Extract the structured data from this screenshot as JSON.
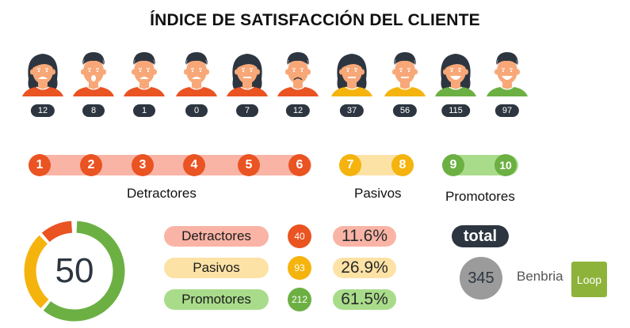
{
  "title": "ÍNDICE DE SATISFACCIÓN DEL CLIENTE",
  "colors": {
    "detractor": "#ea5322",
    "detractor_light": "#f9b4a6",
    "passive": "#f5b30e",
    "passive_light": "#fde2a5",
    "promoter": "#6cb043",
    "promoter_light": "#a9dc8a",
    "dark": "#2d3640",
    "skin": "#f8a878"
  },
  "faces": [
    {
      "score": 1,
      "count": "12",
      "gender": "female",
      "expression": "angry",
      "shirt": "#ea5322"
    },
    {
      "score": 2,
      "count": "8",
      "gender": "male",
      "expression": "shocked",
      "shirt": "#ea5322"
    },
    {
      "score": 3,
      "count": "1",
      "gender": "male",
      "expression": "upset",
      "shirt": "#ea5322"
    },
    {
      "score": 4,
      "count": "0",
      "gender": "male",
      "expression": "annoyed",
      "shirt": "#ea5322"
    },
    {
      "score": 5,
      "count": "7",
      "gender": "female",
      "expression": "worried",
      "shirt": "#ea5322"
    },
    {
      "score": 6,
      "count": "12",
      "gender": "male",
      "expression": "sad",
      "shirt": "#ea5322"
    },
    {
      "score": 7,
      "count": "37",
      "gender": "female",
      "expression": "neutral",
      "shirt": "#f5b30e"
    },
    {
      "score": 8,
      "count": "56",
      "gender": "male",
      "expression": "neutral",
      "shirt": "#f5b30e"
    },
    {
      "score": 9,
      "count": "115",
      "gender": "female",
      "expression": "happy",
      "shirt": "#6cb043"
    },
    {
      "score": 10,
      "count": "97",
      "gender": "male",
      "expression": "very-happy",
      "shirt": "#6cb043"
    }
  ],
  "scale": {
    "detractors": {
      "label": "Detractores",
      "scores": [
        "1",
        "2",
        "3",
        "4",
        "5",
        "6"
      ]
    },
    "passives": {
      "label": "Pasivos",
      "scores": [
        "7",
        "8"
      ]
    },
    "promoters": {
      "label": "Promotores",
      "scores": [
        "9",
        "10"
      ]
    }
  },
  "nps": {
    "score": "50"
  },
  "summary": [
    {
      "label": "Detractores",
      "count": "40",
      "percent": "11.6%"
    },
    {
      "label": "Pasivos",
      "count": "93",
      "percent": "26.9%"
    },
    {
      "label": "Promotores",
      "count": "212",
      "percent": "61.5%"
    }
  ],
  "total": {
    "label": "total",
    "value": "345"
  },
  "brand": {
    "name": "Benbria",
    "logo_text": "Loop"
  },
  "chart_data": {
    "type": "bar",
    "title": "ÍNDICE DE SATISFACCIÓN DEL CLIENTE",
    "categories": [
      "1",
      "2",
      "3",
      "4",
      "5",
      "6",
      "7",
      "8",
      "9",
      "10"
    ],
    "values": [
      12,
      8,
      1,
      0,
      7,
      12,
      37,
      56,
      115,
      97
    ],
    "groups": [
      {
        "name": "Detractores",
        "scores": [
          1,
          2,
          3,
          4,
          5,
          6
        ],
        "count": 40,
        "percent": 11.6
      },
      {
        "name": "Pasivos",
        "scores": [
          7,
          8
        ],
        "count": 93,
        "percent": 26.9
      },
      {
        "name": "Promotores",
        "scores": [
          9,
          10
        ],
        "count": 212,
        "percent": 61.5
      }
    ],
    "donut": {
      "type": "pie",
      "center_label": "50",
      "slices": [
        {
          "name": "Detractores",
          "value": 11.6
        },
        {
          "name": "Pasivos",
          "value": 26.9
        },
        {
          "name": "Promotores",
          "value": 61.5
        }
      ]
    },
    "total": 345,
    "nps": 50
  }
}
